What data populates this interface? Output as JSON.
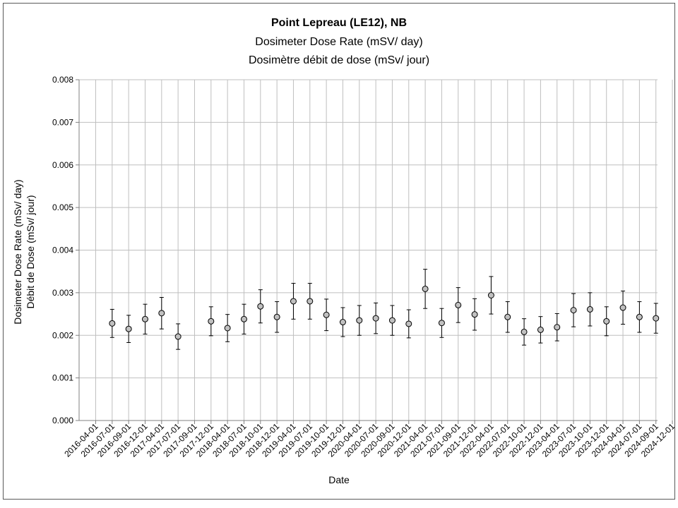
{
  "chart_data": {
    "type": "scatter",
    "title": "Point Lepreau (LE12), NB",
    "subtitle_en": "Dosimeter Dose Rate (mSV/ day)",
    "subtitle_fr": "Dosimètre débit de dose (mSv/ jour)",
    "xlabel": "Date",
    "ylabel_en": "Dosimeter Dose Rate (mSv/ day)",
    "ylabel_fr": "Débit de Dose (mSv/ jour)",
    "ylim": [
      0,
      0.008
    ],
    "y_ticks": [
      "0.000",
      "0.001",
      "0.002",
      "0.003",
      "0.004",
      "0.005",
      "0.006",
      "0.007",
      "0.008"
    ],
    "x_ticks": [
      "2016-04-01",
      "2016-07-01",
      "2016-09-01",
      "2016-12-01",
      "2017-04-01",
      "2017-07-01",
      "2017-09-01",
      "2017-12-01",
      "2018-04-01",
      "2018-07-01",
      "2018-10-01",
      "2018-12-01",
      "2019-04-01",
      "2019-07-01",
      "2019-10-01",
      "2019-12-01",
      "2020-04-01",
      "2020-07-01",
      "2020-09-01",
      "2020-12-01",
      "2021-04-01",
      "2021-07-01",
      "2021-09-01",
      "2021-12-01",
      "2022-04-01",
      "2022-07-01",
      "2022-10-01",
      "2022-12-01",
      "2023-04-01",
      "2023-07-01",
      "2023-10-01",
      "2023-12-01",
      "2024-04-01",
      "2024-07-01",
      "2024-09-01",
      "2024-12-01"
    ],
    "grid": true,
    "legend": "none",
    "error_bars": true,
    "points": [
      {
        "x": "2016-07-01",
        "y": 0.00228,
        "err": 0.00033
      },
      {
        "x": "2016-09-01",
        "y": 0.00215,
        "err": 0.00032
      },
      {
        "x": "2016-12-01",
        "y": 0.00238,
        "err": 0.00035
      },
      {
        "x": "2017-04-01",
        "y": 0.00252,
        "err": 0.00037
      },
      {
        "x": "2017-07-01",
        "y": 0.00197,
        "err": 0.0003
      },
      {
        "x": "2017-12-01",
        "y": 0.00233,
        "err": 0.00034
      },
      {
        "x": "2018-04-01",
        "y": 0.00217,
        "err": 0.00032
      },
      {
        "x": "2018-07-01",
        "y": 0.00238,
        "err": 0.00035
      },
      {
        "x": "2018-10-01",
        "y": 0.00268,
        "err": 0.00039
      },
      {
        "x": "2018-12-01",
        "y": 0.00243,
        "err": 0.00036
      },
      {
        "x": "2019-04-01",
        "y": 0.0028,
        "err": 0.00042
      },
      {
        "x": "2019-07-01",
        "y": 0.0028,
        "err": 0.00042
      },
      {
        "x": "2019-10-01",
        "y": 0.00248,
        "err": 0.00037
      },
      {
        "x": "2019-12-01",
        "y": 0.00231,
        "err": 0.00034
      },
      {
        "x": "2020-04-01",
        "y": 0.00235,
        "err": 0.00035
      },
      {
        "x": "2020-07-01",
        "y": 0.0024,
        "err": 0.00036
      },
      {
        "x": "2020-09-01",
        "y": 0.00235,
        "err": 0.00035
      },
      {
        "x": "2020-12-01",
        "y": 0.00227,
        "err": 0.00033
      },
      {
        "x": "2021-04-01",
        "y": 0.00309,
        "err": 0.00046
      },
      {
        "x": "2021-07-01",
        "y": 0.00229,
        "err": 0.00034
      },
      {
        "x": "2021-09-01",
        "y": 0.00271,
        "err": 0.00041
      },
      {
        "x": "2021-12-01",
        "y": 0.00249,
        "err": 0.00037
      },
      {
        "x": "2022-04-01",
        "y": 0.00294,
        "err": 0.00044
      },
      {
        "x": "2022-07-01",
        "y": 0.00243,
        "err": 0.00036
      },
      {
        "x": "2022-10-01",
        "y": 0.00208,
        "err": 0.00031
      },
      {
        "x": "2022-12-01",
        "y": 0.00213,
        "err": 0.00031
      },
      {
        "x": "2023-04-01",
        "y": 0.00219,
        "err": 0.00032
      },
      {
        "x": "2023-07-01",
        "y": 0.00259,
        "err": 0.00039
      },
      {
        "x": "2023-10-01",
        "y": 0.00261,
        "err": 0.00039
      },
      {
        "x": "2023-12-01",
        "y": 0.00233,
        "err": 0.00034
      },
      {
        "x": "2024-04-01",
        "y": 0.00265,
        "err": 0.00039
      },
      {
        "x": "2024-07-01",
        "y": 0.00243,
        "err": 0.00036
      },
      {
        "x": "2024-09-01",
        "y": 0.0024,
        "err": 0.00035
      }
    ],
    "colors": {
      "marker_fill": "#c0c0c0",
      "marker_stroke": "#000000",
      "grid": "#bfbfbf",
      "axis": "#808080"
    }
  }
}
